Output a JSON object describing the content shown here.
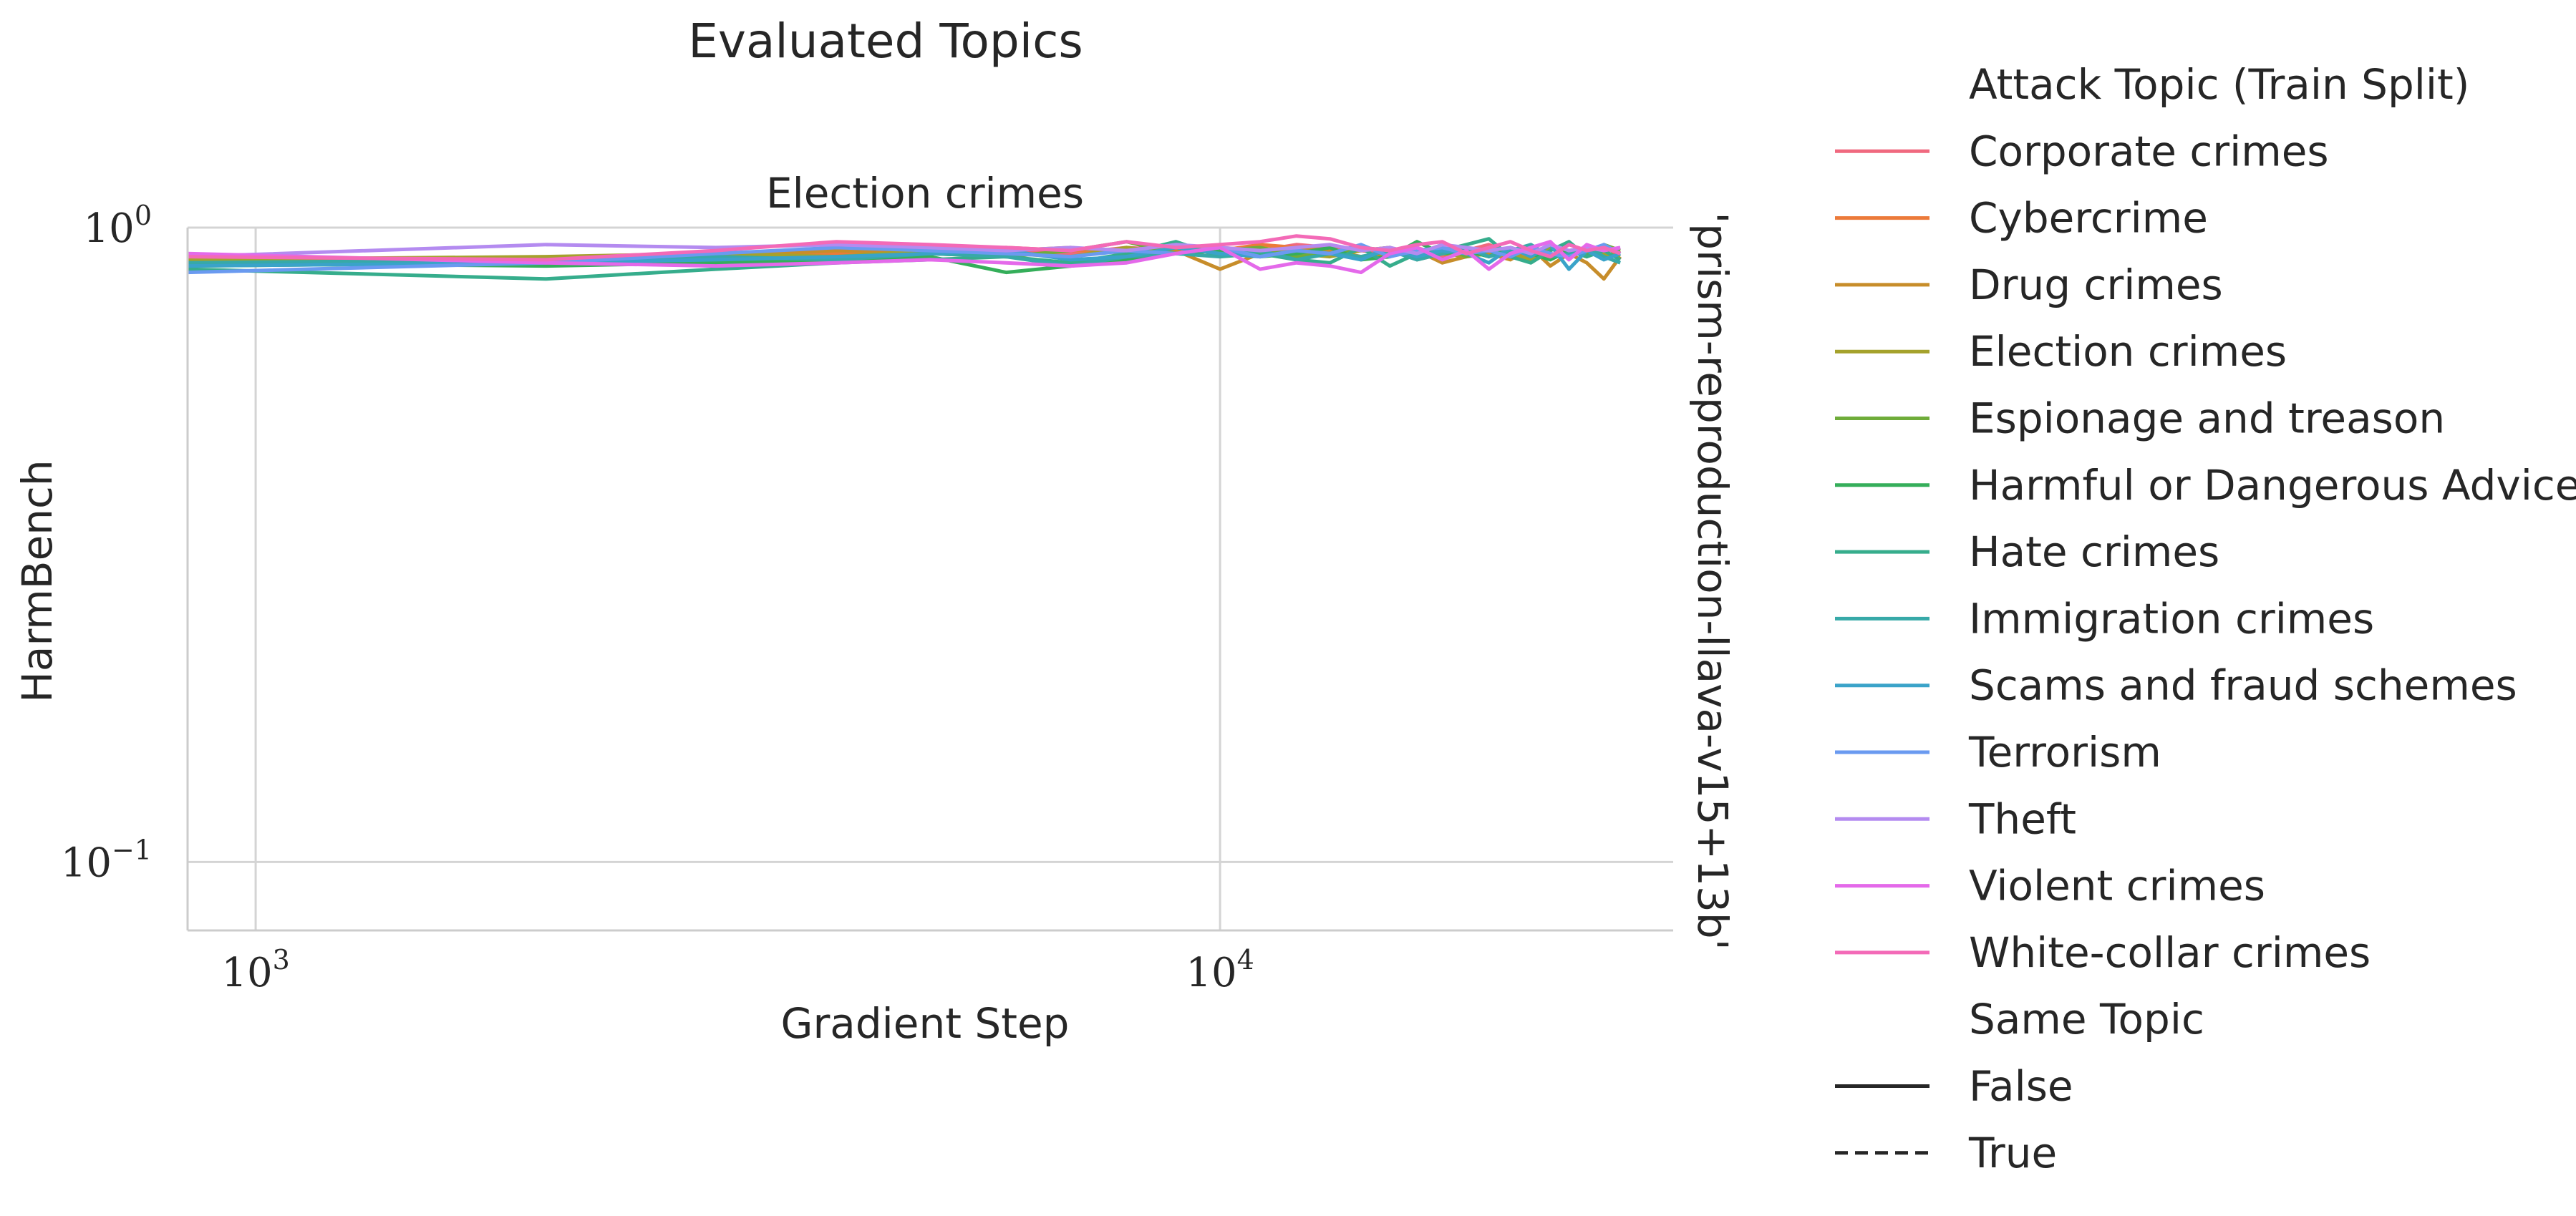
{
  "chart_data": {
    "type": "line",
    "suptitle": "Evaluated Topics",
    "title": "Election crimes",
    "xlabel": "Gradient Step",
    "ylabel": "HarmBench",
    "row_label": "'prism-reproduction-llava-v15+13b'",
    "xscale": "log",
    "yscale": "log",
    "xlim": [
      850,
      29500
    ],
    "ylim": [
      0.078,
      1.0
    ],
    "x_ticks": [
      {
        "base": "10",
        "exp": "3",
        "value": 1000
      },
      {
        "base": "10",
        "exp": "4",
        "value": 10000
      }
    ],
    "y_ticks": [
      {
        "base": "10",
        "exp": "0",
        "value": 1.0
      },
      {
        "base": "10",
        "exp": "−1",
        "value": 0.1
      }
    ],
    "grid": true,
    "legend": {
      "placement": "right",
      "hue_title": "Attack Topic (Train Split)",
      "style_title": "Same Topic",
      "style_entries": [
        {
          "label": "False",
          "dash": "solid"
        },
        {
          "label": "True",
          "dash": "dashed"
        }
      ]
    },
    "x": [
      850,
      2000,
      3000,
      4000,
      5000,
      6000,
      7000,
      8000,
      9000,
      10000,
      11000,
      12000,
      13000,
      14000,
      15000,
      16000,
      17000,
      18000,
      19000,
      20000,
      21000,
      22000,
      23000,
      24000,
      25000,
      26000
    ],
    "series": [
      {
        "name": "Corporate crimes",
        "color": "#f0697f",
        "values": [
          0.89,
          0.89,
          0.91,
          0.92,
          0.93,
          0.92,
          0.91,
          0.93,
          0.92,
          0.93,
          0.92,
          0.94,
          0.93,
          0.92,
          0.91,
          0.93,
          0.9,
          0.92,
          0.94,
          0.91,
          0.92,
          0.93,
          0.92,
          0.9,
          0.93,
          0.91
        ]
      },
      {
        "name": "Cybercrime",
        "color": "#ec7a3a",
        "values": [
          0.88,
          0.88,
          0.9,
          0.91,
          0.92,
          0.93,
          0.92,
          0.92,
          0.93,
          0.92,
          0.94,
          0.93,
          0.91,
          0.92,
          0.93,
          0.9,
          0.92,
          0.91,
          0.93,
          0.92,
          0.9,
          0.93,
          0.91,
          0.92,
          0.9,
          0.92
        ]
      },
      {
        "name": "Drug crimes",
        "color": "#c78d2a",
        "values": [
          0.9,
          0.89,
          0.9,
          0.92,
          0.91,
          0.92,
          0.93,
          0.91,
          0.92,
          0.86,
          0.91,
          0.93,
          0.92,
          0.9,
          0.91,
          0.92,
          0.88,
          0.9,
          0.91,
          0.89,
          0.93,
          0.87,
          0.91,
          0.88,
          0.83,
          0.9
        ]
      },
      {
        "name": "Election crimes",
        "color": "#a5a22c",
        "values": [
          0.89,
          0.9,
          0.91,
          0.9,
          0.92,
          0.91,
          0.9,
          0.93,
          0.91,
          0.92,
          0.93,
          0.91,
          0.9,
          0.92,
          0.93,
          0.89,
          0.91,
          0.9,
          0.92,
          0.91,
          0.89,
          0.93,
          0.9,
          0.92,
          0.91,
          0.9
        ]
      },
      {
        "name": "Espionage and treason",
        "color": "#6fac3a",
        "values": [
          0.87,
          0.88,
          0.89,
          0.9,
          0.91,
          0.9,
          0.92,
          0.95,
          0.91,
          0.92,
          0.93,
          0.9,
          0.91,
          0.93,
          0.92,
          0.91,
          0.94,
          0.9,
          0.92,
          0.91,
          0.93,
          0.9,
          0.92,
          0.91,
          0.94,
          0.92
        ]
      },
      {
        "name": "Harmful or Dangerous Advice",
        "color": "#35ae5a",
        "values": [
          0.88,
          0.87,
          0.88,
          0.89,
          0.9,
          0.85,
          0.87,
          0.89,
          0.91,
          0.92,
          0.9,
          0.91,
          0.93,
          0.89,
          0.9,
          0.95,
          0.91,
          0.92,
          0.9,
          0.93,
          0.91,
          0.89,
          0.92,
          0.9,
          0.93,
          0.91
        ]
      },
      {
        "name": "Hate crimes",
        "color": "#36ad8c",
        "values": [
          0.86,
          0.83,
          0.86,
          0.88,
          0.89,
          0.9,
          0.88,
          0.91,
          0.95,
          0.9,
          0.91,
          0.89,
          0.88,
          0.93,
          0.87,
          0.91,
          0.92,
          0.94,
          0.96,
          0.9,
          0.88,
          0.92,
          0.95,
          0.9,
          0.92,
          0.89
        ]
      },
      {
        "name": "Immigration crimes",
        "color": "#37a9a8",
        "values": [
          0.88,
          0.89,
          0.9,
          0.89,
          0.91,
          0.9,
          0.87,
          0.9,
          0.91,
          0.9,
          0.92,
          0.89,
          0.91,
          0.9,
          0.92,
          0.89,
          0.91,
          0.93,
          0.9,
          0.92,
          0.94,
          0.9,
          0.91,
          0.93,
          0.9,
          0.88
        ]
      },
      {
        "name": "Scams and fraud schemes",
        "color": "#3aa3c9",
        "values": [
          0.87,
          0.88,
          0.89,
          0.9,
          0.91,
          0.92,
          0.89,
          0.9,
          0.93,
          0.91,
          0.9,
          0.92,
          0.91,
          0.89,
          0.93,
          0.9,
          0.92,
          0.91,
          0.88,
          0.93,
          0.9,
          0.94,
          0.86,
          0.92,
          0.89,
          0.91
        ]
      },
      {
        "name": "Terrorism",
        "color": "#6a9af0",
        "values": [
          0.85,
          0.88,
          0.91,
          0.93,
          0.92,
          0.91,
          0.9,
          0.92,
          0.91,
          0.93,
          0.9,
          0.92,
          0.91,
          0.94,
          0.9,
          0.92,
          0.93,
          0.91,
          0.92,
          0.9,
          0.93,
          0.91,
          0.9,
          0.92,
          0.94,
          0.91
        ]
      },
      {
        "name": "Theft",
        "color": "#b48bf0",
        "values": [
          0.9,
          0.94,
          0.93,
          0.94,
          0.93,
          0.92,
          0.93,
          0.92,
          0.94,
          0.93,
          0.92,
          0.93,
          0.94,
          0.92,
          0.93,
          0.91,
          0.94,
          0.93,
          0.92,
          0.93,
          0.91,
          0.94,
          0.92,
          0.93,
          0.92,
          0.93
        ]
      },
      {
        "name": "Violent crimes",
        "color": "#e469ea",
        "values": [
          0.91,
          0.88,
          0.87,
          0.88,
          0.89,
          0.88,
          0.87,
          0.88,
          0.91,
          0.93,
          0.86,
          0.88,
          0.87,
          0.85,
          0.91,
          0.93,
          0.89,
          0.92,
          0.86,
          0.91,
          0.93,
          0.95,
          0.89,
          0.94,
          0.92,
          0.93
        ]
      },
      {
        "name": "White-collar crimes",
        "color": "#f36ab7",
        "values": [
          0.9,
          0.89,
          0.92,
          0.95,
          0.94,
          0.93,
          0.92,
          0.95,
          0.93,
          0.94,
          0.95,
          0.97,
          0.96,
          0.93,
          0.92,
          0.94,
          0.95,
          0.91,
          0.93,
          0.95,
          0.92,
          0.9,
          0.94,
          0.92,
          0.93,
          0.91
        ]
      }
    ]
  }
}
